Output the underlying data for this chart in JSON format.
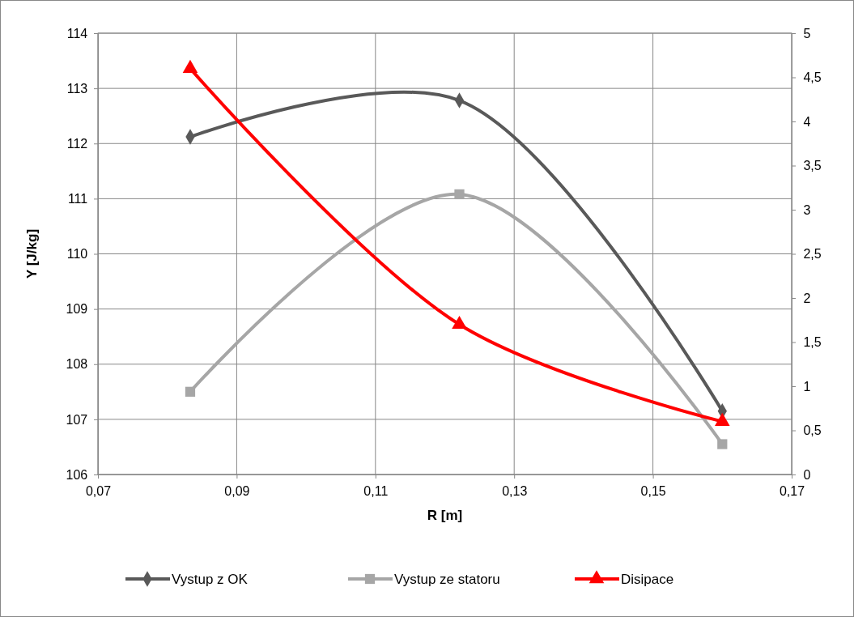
{
  "chart_data": {
    "type": "line",
    "xlabel": "R [m]",
    "ylabel": "Y [J/kg]",
    "x": [
      0.0833,
      0.1221,
      0.16
    ],
    "xlim": [
      0.07,
      0.17
    ],
    "xticks": [
      {
        "value": 0.07,
        "label": "0,07"
      },
      {
        "value": 0.09,
        "label": "0,09"
      },
      {
        "value": 0.11,
        "label": "0,11"
      },
      {
        "value": 0.13,
        "label": "0,13"
      },
      {
        "value": 0.15,
        "label": "0,15"
      },
      {
        "value": 0.17,
        "label": "0,17"
      }
    ],
    "ylim": [
      106,
      114
    ],
    "yticks": [
      106,
      107,
      108,
      109,
      110,
      111,
      112,
      113,
      114
    ],
    "y2lim": [
      0,
      5
    ],
    "y2ticks": [
      0,
      {
        "value": 0.5,
        "label": "0,5"
      },
      1,
      {
        "value": 1.5,
        "label": "1,5"
      },
      2,
      {
        "value": 2.5,
        "label": "2,5"
      },
      3,
      {
        "value": 3.5,
        "label": "3,5"
      },
      4,
      {
        "value": 4.5,
        "label": "4,5"
      },
      5
    ],
    "grid": true,
    "legend": "bottom",
    "series": [
      {
        "name": "Vystup z OK",
        "color": "#595959",
        "marker": "diamond",
        "values": [
          112.12,
          112.78,
          107.15
        ]
      },
      {
        "name": "Vystup ze statoru",
        "color": "#a6a6a6",
        "marker": "square",
        "values": [
          107.5,
          111.08,
          106.55
        ]
      },
      {
        "name": "Disipace",
        "color": "#ff0000",
        "marker": "triangle",
        "axis": "y2",
        "values": [
          4.6,
          1.7,
          0.6
        ]
      }
    ]
  }
}
